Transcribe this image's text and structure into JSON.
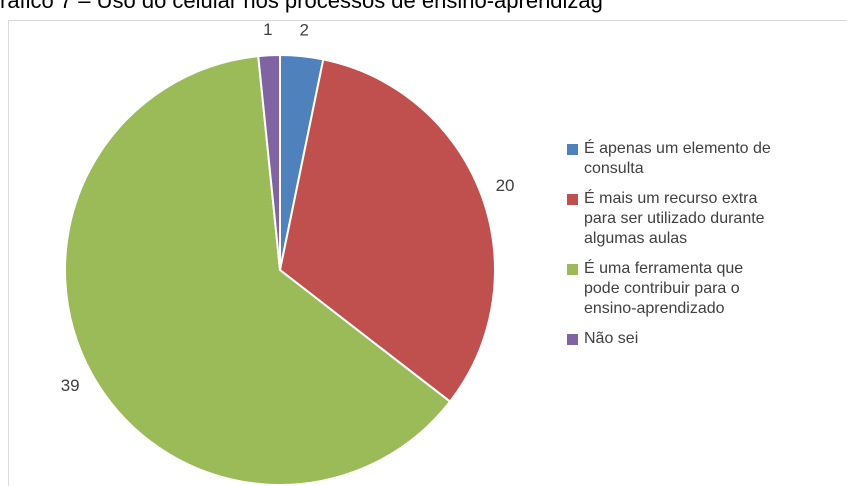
{
  "chart_data": {
    "type": "pie",
    "title": "ráfico 7 – Uso do celular nos processos de ensino-aprendizag",
    "categories": [
      "É apenas um elemento de consulta",
      "É mais um recurso extra para ser utilizado durante algumas aulas",
      "É uma ferramenta que pode contribuir para o ensino-aprendizado",
      "Não sei"
    ],
    "values": [
      2,
      20,
      39,
      1
    ],
    "colors": [
      "#4f81bd",
      "#c0504d",
      "#9bbb59",
      "#8064a2"
    ],
    "legend": "right"
  }
}
